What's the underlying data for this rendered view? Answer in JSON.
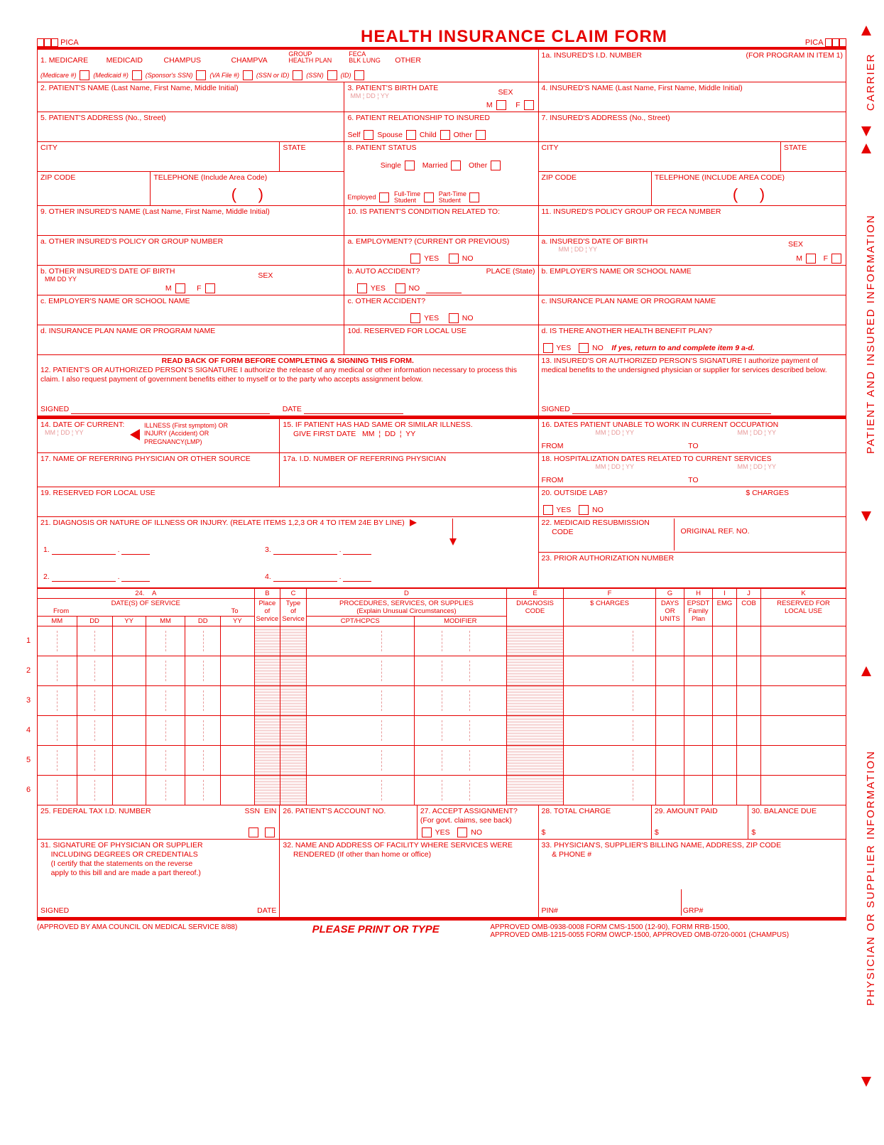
{
  "colors": {
    "ink": "#e60000",
    "faint": "#e89999",
    "bg": "#ffffff",
    "shade": "#f5cfcf"
  },
  "side": {
    "carrier": "CARRIER",
    "patient": "PATIENT AND INSURED INFORMATION",
    "physician": "PHYSICIAN OR SUPPLIER INFORMATION"
  },
  "top": {
    "pica_l": "PICA",
    "pica_r": "PICA",
    "title": "HEALTH INSURANCE CLAIM FORM"
  },
  "r1": {
    "num": "1.",
    "medicare": "MEDICARE",
    "medicare_sub": "(Medicare #)",
    "medicaid": "MEDICAID",
    "medicaid_sub": "(Medicaid #)",
    "champus": "CHAMPUS",
    "champus_sub": "(Sponsor's SSN)",
    "champva": "CHAMPVA",
    "champva_sub": "(VA File #)",
    "group": "GROUP\nHEALTH PLAN",
    "group_sub": "(SSN or ID)",
    "feca": "FECA\nBLK LUNG",
    "feca_sub": "(SSN)",
    "other": "OTHER",
    "other_sub": "(ID)",
    "a": "1a. INSURED'S I.D. NUMBER",
    "a_hint": "(FOR PROGRAM IN ITEM 1)"
  },
  "r2": {
    "l": "2. PATIENT'S NAME (Last Name, First Name, Middle Initial)",
    "m": "3. PATIENT'S BIRTH DATE",
    "m_mmddyy": "MM  ¦  DD  ¦  YY",
    "sex": "SEX",
    "m_lbl": "M",
    "f_lbl": "F",
    "r": "4. INSURED'S NAME (Last Name, First Name, Middle Initial)"
  },
  "r3": {
    "l": "5. PATIENT'S ADDRESS (No., Street)",
    "m": "6. PATIENT RELATIONSHIP TO INSURED",
    "self": "Self",
    "spouse": "Spouse",
    "child": "Child",
    "other": "Other",
    "r": "7. INSURED'S ADDRESS (No., Street)"
  },
  "r4": {
    "city": "CITY",
    "state": "STATE",
    "m": "8. PATIENT STATUS",
    "single": "Single",
    "married": "Married",
    "other": "Other",
    "emp": "Employed",
    "ft": "Full-Time\nStudent",
    "pt": "Part-Time\nStudent",
    "zip": "ZIP CODE",
    "tel": "TELEPHONE (Include Area Code)",
    "tel_r": "TELEPHONE (INCLUDE AREA CODE)"
  },
  "r5": {
    "l": "9. OTHER INSURED'S NAME (Last Name, First Name, Middle Initial)",
    "m": "10. IS PATIENT'S CONDITION RELATED TO:",
    "r": "11. INSURED'S POLICY GROUP OR FECA NUMBER",
    "a_l": "a. OTHER INSURED'S POLICY OR GROUP NUMBER",
    "a_m": "a. EMPLOYMENT? (CURRENT OR PREVIOUS)",
    "a_r": "a. INSURED'S DATE OF BIRTH",
    "a_r_mmddyy": "MM  ¦  DD  ¦  YY",
    "b_l": "b. OTHER INSURED'S DATE OF BIRTH",
    "b_l_mmddyy": "MM   DD   YY",
    "b_m": "b. AUTO ACCIDENT?",
    "place": "PLACE (State)",
    "b_r": "b. EMPLOYER'S NAME OR SCHOOL NAME",
    "c_l": "c. EMPLOYER'S NAME OR SCHOOL NAME",
    "c_m": "c. OTHER ACCIDENT?",
    "c_r": "c. INSURANCE PLAN NAME OR PROGRAM NAME",
    "d_l": "d. INSURANCE PLAN NAME OR PROGRAM NAME",
    "d_m": "10d. RESERVED FOR LOCAL USE",
    "d_r": "d. IS THERE ANOTHER HEALTH BENEFIT PLAN?",
    "d_r_hint": "If yes, return to and complete item 9 a-d.",
    "yes": "YES",
    "no": "NO"
  },
  "r6": {
    "warn": "READ BACK OF FORM BEFORE COMPLETING & SIGNING THIS FORM.",
    "l": "12. PATIENT'S OR AUTHORIZED PERSON'S SIGNATURE  I authorize the release of any medical or other information necessary to process this claim. I also request payment of government benefits either to myself or to the party who accepts assignment below.",
    "r": "13. INSURED'S OR AUTHORIZED PERSON'S SIGNATURE I authorize payment of medical benefits to the undersigned physician or supplier for services described below.",
    "signed": "SIGNED",
    "date": "DATE"
  },
  "r7": {
    "l": "14. DATE OF CURRENT:",
    "l_mmddyy": "MM  ¦ DD  ¦ YY",
    "l_opts": "ILLNESS (First symptom) OR\nINJURY (Accident) OR\nPREGNANCY(LMP)",
    "m": "15. IF PATIENT HAS HAD SAME OR SIMILAR ILLNESS.\n     GIVE FIRST DATE   MM  ¦  DD  ¦  YY",
    "r": "16. DATES PATIENT UNABLE TO WORK IN CURRENT OCCUPATION",
    "from": "FROM",
    "to": "TO",
    "mmddyy": "MM  ¦  DD  ¦  YY"
  },
  "r8": {
    "l": "17. NAME OF REFERRING PHYSICIAN OR OTHER SOURCE",
    "m": "17a. I.D. NUMBER OF REFERRING PHYSICIAN",
    "r": "18. HOSPITALIZATION DATES RELATED TO CURRENT SERVICES"
  },
  "r9": {
    "l": "19. RESERVED FOR LOCAL USE",
    "r": "20. OUTSIDE LAB?",
    "charges": "$ CHARGES"
  },
  "r10": {
    "l": "21. DIAGNOSIS OR NATURE OF ILLNESS OR INJURY. (RELATE ITEMS 1,2,3 OR 4 TO ITEM 24E BY LINE)",
    "r1": "22. MEDICAID RESUBMISSION\n     CODE",
    "orig": "ORIGINAL REF. NO.",
    "r2": "23. PRIOR AUTHORIZATION NUMBER",
    "d1": "1.",
    "d2": "2.",
    "d3": "3.",
    "d4": "4."
  },
  "svc": {
    "hdr": {
      "A": "A",
      "B": "B",
      "C": "C",
      "D": "D",
      "E": "E",
      "F": "F",
      "G": "G",
      "H": "H",
      "I": "I",
      "J": "J",
      "K": "K"
    },
    "a": "DATE(S) OF SERVICE",
    "from": "From",
    "to": "To",
    "mm": "MM",
    "dd": "DD",
    "yy": "YY",
    "b": "Place\nof\nService",
    "c": "Type\nof\nService",
    "d": "PROCEDURES, SERVICES, OR SUPPLIES\n(Explain Unusual Circumstances)",
    "d1": "CPT/HCPCS",
    "d2": "MODIFIER",
    "e": "DIAGNOSIS\nCODE",
    "f": "$ CHARGES",
    "g": "DAYS\nOR\nUNITS",
    "h": "EPSDT\nFamily\nPlan",
    "i": "EMG",
    "j": "COB",
    "k": "RESERVED FOR\nLOCAL USE",
    "row_nums": [
      "1",
      "2",
      "3",
      "4",
      "5",
      "6"
    ]
  },
  "r12": {
    "l": "25. FEDERAL TAX I.D. NUMBER",
    "ssn": "SSN",
    "ein": "EIN",
    "m": "26. PATIENT'S ACCOUNT NO.",
    "n": "27. ACCEPT ASSIGNMENT?\n(For govt. claims, see back)",
    "yes": "YES",
    "no": "NO",
    "r1": "28. TOTAL CHARGE",
    "r2": "29. AMOUNT PAID",
    "r3": "30. BALANCE DUE",
    "dol": "$"
  },
  "r13": {
    "l": "31. SIGNATURE OF PHYSICIAN OR SUPPLIER\n     INCLUDING DEGREES OR CREDENTIALS\n     (I certify that the statements on the reverse\n     apply to this bill and are made a part thereof.)",
    "m": "32. NAME AND ADDRESS OF FACILITY WHERE SERVICES WERE\n     RENDERED (If other than home or office)",
    "r": "33. PHYSICIAN'S, SUPPLIER'S BILLING NAME, ADDRESS, ZIP CODE\n     & PHONE #",
    "signed": "SIGNED",
    "date": "DATE",
    "pin": "PIN#",
    "grp": "GRP#"
  },
  "footer": {
    "ama": "(APPROVED BY AMA COUNCIL ON MEDICAL SERVICE 8/88)",
    "please": "PLEASE PRINT OR TYPE",
    "l1": "APPROVED OMB-0938-0008 FORM CMS-1500 (12-90),   FORM RRB-1500,",
    "l2": "APPROVED OMB-1215-0055 FORM OWCP-1500,    APPROVED OMB-0720-0001 (CHAMPUS)"
  }
}
